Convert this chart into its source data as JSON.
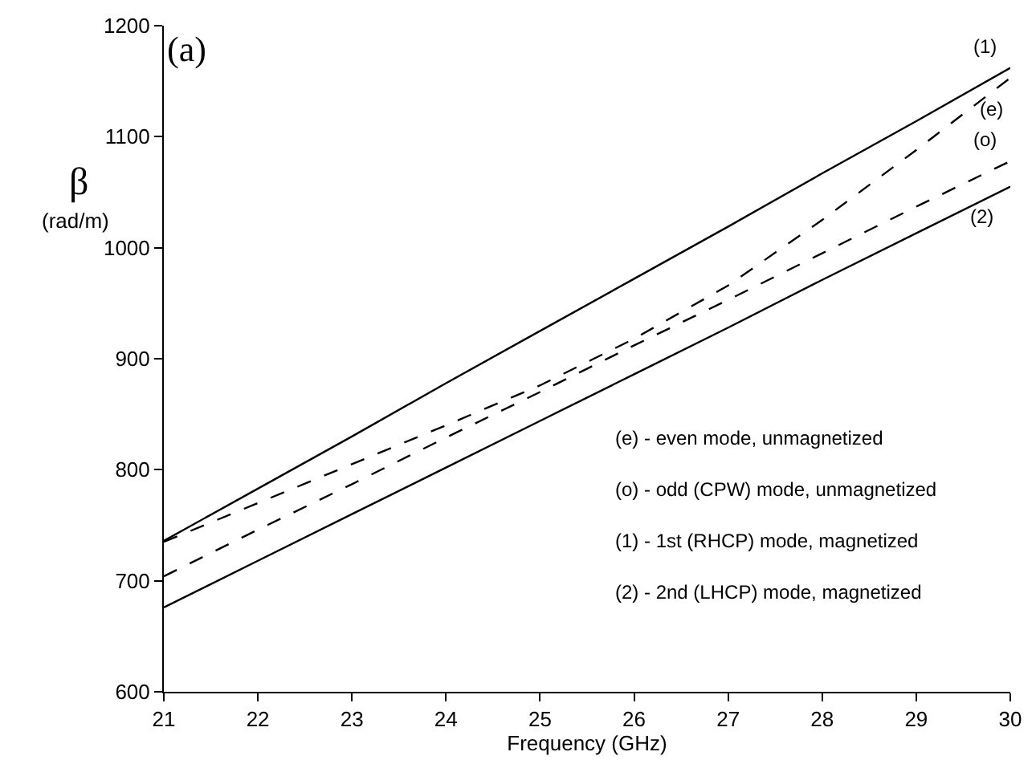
{
  "chart_data": {
    "type": "line",
    "xlabel": "Frequency (GHz)",
    "ylabel": "β",
    "x": [
      21,
      22,
      23,
      24,
      25,
      26,
      27,
      28,
      29,
      30
    ],
    "series": [
      {
        "name": "(1)",
        "color": "#000000",
        "line_style": "solid",
        "values": [
          736,
          783,
          830,
          878,
          925,
          972,
          1019,
          1067,
          1114,
          1162
        ]
      },
      {
        "name": "(e)",
        "color": "#000000",
        "line_style": "dashed",
        "values": [
          735,
          770,
          805,
          840,
          876,
          918,
          966,
          1025,
          1088,
          1153
        ]
      },
      {
        "name": "(o)",
        "color": "#000000",
        "line_style": "dashed",
        "values": [
          704,
          746,
          787,
          829,
          870,
          912,
          953,
          995,
          1037,
          1078
        ]
      },
      {
        "name": "(2)",
        "color": "#000000",
        "line_style": "solid",
        "values": [
          676,
          718,
          760,
          802,
          844,
          886,
          928,
          971,
          1013,
          1055
        ]
      }
    ],
    "xlim": [
      21,
      30
    ],
    "ylim": [
      600,
      1200
    ],
    "xticks": [
      21,
      22,
      23,
      24,
      25,
      26,
      27,
      28,
      29,
      30
    ],
    "yticks": [
      600,
      700,
      800,
      900,
      1000,
      1100,
      1200
    ],
    "legend": false,
    "marker": "none",
    "annotations": [
      "(a)",
      "(rad/m)",
      "(e) - even mode, unmagnetized",
      "(o) - odd (CPW) mode, unmagnetized",
      "(1) - 1st (RHCP) mode, magnetized",
      "(2) - 2nd (LHCP) mode, magnetized"
    ]
  }
}
